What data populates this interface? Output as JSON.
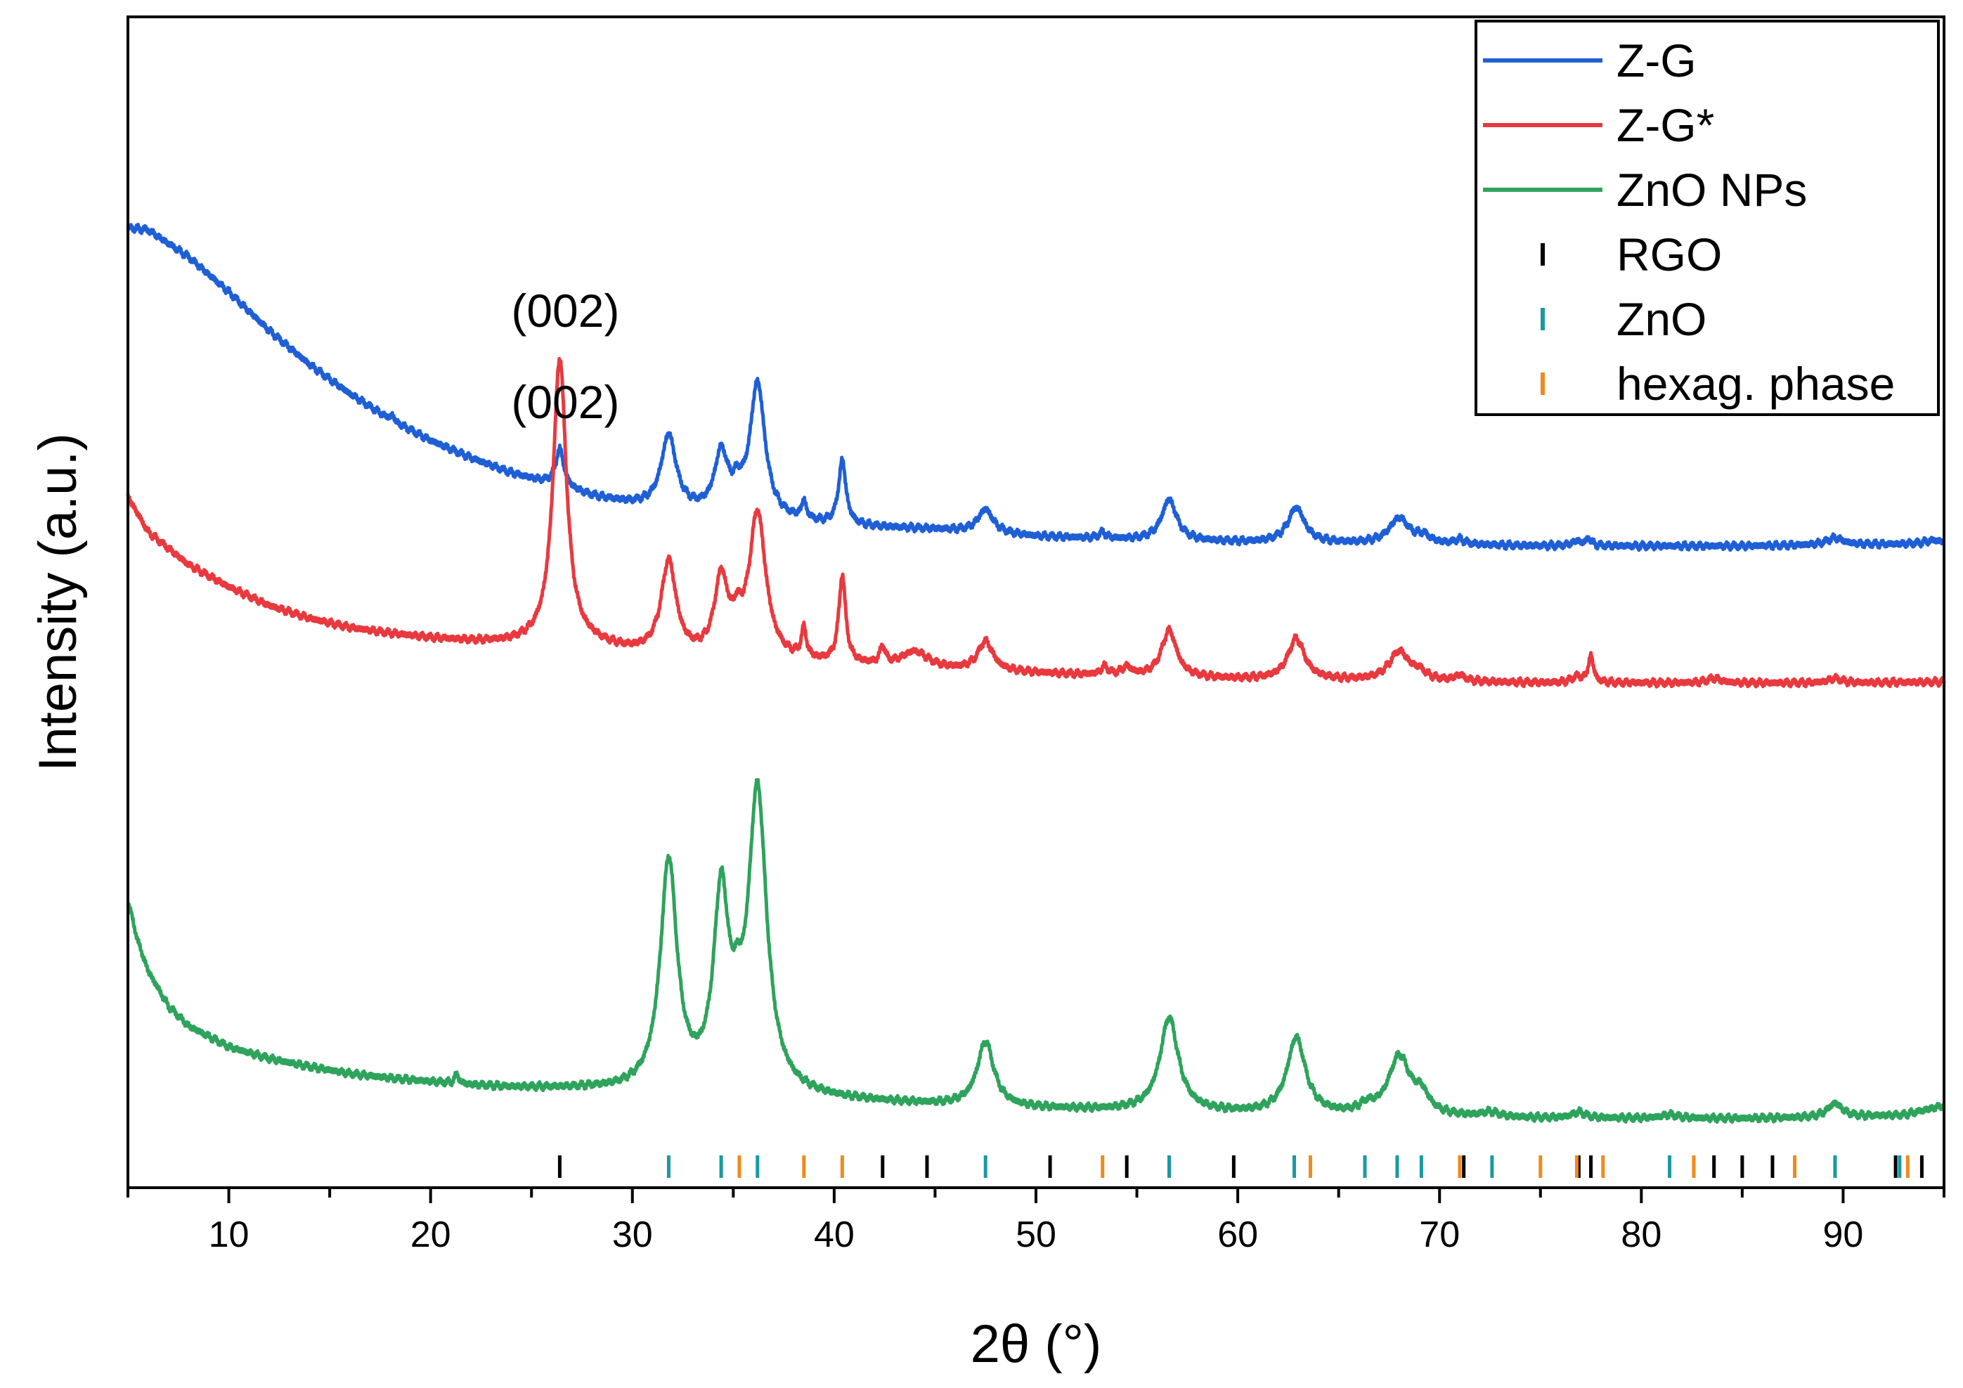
{
  "chart_data": {
    "type": "line",
    "title": "",
    "xlabel": "2θ (°)",
    "ylabel": "Intensity (a.u.)",
    "xlim": [
      5,
      95
    ],
    "ylim": [
      0,
      100
    ],
    "xticks": [
      "10",
      "20",
      "30",
      "40",
      "50",
      "60",
      "70",
      "80",
      "90"
    ],
    "yticks": [],
    "grid": false,
    "legend_position": "top-right",
    "series": [
      {
        "name": "Z-G",
        "color": "#1f5fd6",
        "kind": "line",
        "baseline": [
          [
            5,
            82.0
          ],
          [
            6,
            81.8
          ],
          [
            8,
            79.5
          ],
          [
            10,
            76.5
          ],
          [
            12,
            73.2
          ],
          [
            14,
            70.3
          ],
          [
            16,
            67.8
          ],
          [
            18,
            65.6
          ],
          [
            20,
            63.8
          ],
          [
            22,
            62.3
          ],
          [
            24,
            61.0
          ],
          [
            26,
            60.0
          ],
          [
            28,
            59.0
          ],
          [
            30,
            58.3
          ],
          [
            32,
            57.8
          ],
          [
            34,
            57.4
          ],
          [
            36,
            57.0
          ],
          [
            40,
            56.5
          ],
          [
            45,
            56.2
          ],
          [
            50,
            55.6
          ],
          [
            55,
            55.3
          ],
          [
            60,
            55.1
          ],
          [
            65,
            55.0
          ],
          [
            70,
            54.9
          ],
          [
            75,
            54.8
          ],
          [
            80,
            54.8
          ],
          [
            85,
            54.8
          ],
          [
            90,
            54.9
          ],
          [
            95,
            55.0
          ]
        ],
        "peaks": [
          [
            18.1,
            0.5,
            0.1
          ],
          [
            26.4,
            3.2,
            0.25
          ],
          [
            31.8,
            6.3,
            0.45
          ],
          [
            34.4,
            5.0,
            0.4
          ],
          [
            35.2,
            1.5,
            0.3
          ],
          [
            36.2,
            11.5,
            0.45
          ],
          [
            38.5,
            1.5,
            0.15
          ],
          [
            40.4,
            5.5,
            0.22
          ],
          [
            47.5,
            2.0,
            0.45
          ],
          [
            53.3,
            0.5,
            0.2
          ],
          [
            56.6,
            3.5,
            0.45
          ],
          [
            62.9,
            3.0,
            0.5
          ],
          [
            68.0,
            2.2,
            0.6
          ],
          [
            69.2,
            0.6,
            0.4
          ],
          [
            71.0,
            0.4,
            0.3
          ],
          [
            76.8,
            0.4,
            0.3
          ],
          [
            77.4,
            0.6,
            0.15
          ],
          [
            89.6,
            0.6,
            0.5
          ],
          [
            94.5,
            0.3,
            0.5
          ]
        ]
      },
      {
        "name": "Z-G*",
        "color": "#e8393f",
        "kind": "line",
        "baseline": [
          [
            5,
            59.0
          ],
          [
            6,
            56.0
          ],
          [
            8,
            53.2
          ],
          [
            10,
            51.3
          ],
          [
            12,
            49.7
          ],
          [
            14,
            48.6
          ],
          [
            16,
            47.8
          ],
          [
            18,
            47.3
          ],
          [
            20,
            46.9
          ],
          [
            22,
            46.6
          ],
          [
            24,
            46.4
          ],
          [
            26,
            46.3
          ],
          [
            28,
            46.2
          ],
          [
            30,
            45.6
          ],
          [
            32,
            45.2
          ],
          [
            34,
            45.0
          ],
          [
            36,
            44.8
          ],
          [
            40,
            44.6
          ],
          [
            45,
            44.2
          ],
          [
            50,
            43.9
          ],
          [
            55,
            43.6
          ],
          [
            60,
            43.4
          ],
          [
            65,
            43.3
          ],
          [
            70,
            43.2
          ],
          [
            75,
            43.1
          ],
          [
            80,
            43.1
          ],
          [
            85,
            43.1
          ],
          [
            90,
            43.1
          ],
          [
            95,
            43.2
          ]
        ],
        "peaks": [
          [
            26.4,
            24.5,
            0.4
          ],
          [
            31.8,
            8.0,
            0.45
          ],
          [
            34.4,
            6.5,
            0.4
          ],
          [
            35.2,
            2.0,
            0.3
          ],
          [
            36.2,
            12.5,
            0.5
          ],
          [
            38.5,
            2.5,
            0.15
          ],
          [
            40.4,
            7.5,
            0.2
          ],
          [
            42.4,
            1.5,
            0.15
          ],
          [
            44.0,
            1.4,
            0.8
          ],
          [
            47.5,
            2.5,
            0.45
          ],
          [
            53.4,
            0.7,
            0.2
          ],
          [
            54.5,
            0.7,
            0.3
          ],
          [
            56.6,
            4.0,
            0.45
          ],
          [
            62.9,
            3.5,
            0.5
          ],
          [
            68.0,
            2.5,
            0.6
          ],
          [
            69.0,
            0.6,
            0.4
          ],
          [
            71.0,
            0.5,
            0.3
          ],
          [
            76.8,
            0.5,
            0.3
          ],
          [
            77.5,
            2.3,
            0.15
          ],
          [
            83.6,
            0.4,
            0.4
          ],
          [
            89.6,
            0.4,
            0.4
          ]
        ]
      },
      {
        "name": "ZnO NPs",
        "color": "#2ea35c",
        "kind": "line",
        "baseline": [
          [
            5,
            24.5
          ],
          [
            5.5,
            21.0
          ],
          [
            6,
            18.5
          ],
          [
            7,
            15.5
          ],
          [
            8,
            13.8
          ],
          [
            10,
            12.0
          ],
          [
            12,
            11.0
          ],
          [
            14,
            10.3
          ],
          [
            16,
            9.7
          ],
          [
            18,
            9.3
          ],
          [
            20,
            9.0
          ],
          [
            22,
            8.7
          ],
          [
            24,
            8.5
          ],
          [
            26,
            8.4
          ],
          [
            28,
            8.3
          ],
          [
            30,
            8.1
          ],
          [
            35,
            7.8
          ],
          [
            40,
            7.4
          ],
          [
            45,
            7.0
          ],
          [
            50,
            6.7
          ],
          [
            55,
            6.5
          ],
          [
            60,
            6.3
          ],
          [
            65,
            6.1
          ],
          [
            70,
            6.0
          ],
          [
            75,
            5.9
          ],
          [
            80,
            5.9
          ],
          [
            85,
            5.9
          ],
          [
            90,
            6.0
          ],
          [
            93,
            6.2
          ],
          [
            95,
            7.0
          ]
        ],
        "peaks": [
          [
            21.3,
            0.8,
            0.12
          ],
          [
            31.8,
            19.5,
            0.5
          ],
          [
            34.4,
            16.0,
            0.45
          ],
          [
            35.2,
            3.0,
            0.3
          ],
          [
            36.2,
            25.5,
            0.55
          ],
          [
            47.5,
            5.5,
            0.5
          ],
          [
            56.6,
            8.0,
            0.55
          ],
          [
            62.9,
            6.5,
            0.55
          ],
          [
            66.4,
            0.6,
            0.4
          ],
          [
            68.0,
            5.0,
            0.65
          ],
          [
            69.1,
            1.5,
            0.45
          ],
          [
            72.5,
            0.4,
            0.5
          ],
          [
            76.9,
            0.5,
            0.4
          ],
          [
            81.4,
            0.3,
            0.5
          ],
          [
            89.6,
            1.2,
            0.45
          ]
        ]
      }
    ],
    "reference_markers": [
      {
        "name": "RGO",
        "color": "#000000",
        "positions": [
          26.4,
          42.4,
          44.6,
          50.7,
          54.5,
          59.8,
          71.2,
          76.9,
          77.5,
          83.6,
          85.0,
          86.5,
          92.6,
          93.9
        ]
      },
      {
        "name": "ZnO",
        "color": "#1a9aa0",
        "positions": [
          31.8,
          34.4,
          36.2,
          47.5,
          56.6,
          62.8,
          66.3,
          67.9,
          69.1,
          72.6,
          81.4,
          89.6,
          92.8
        ]
      },
      {
        "name": "hexag. phase",
        "color": "#f08a1c",
        "positions": [
          35.3,
          38.5,
          40.4,
          53.3,
          63.6,
          71.0,
          75.0,
          76.8,
          78.1,
          82.6,
          87.6,
          93.2
        ]
      }
    ],
    "annotations": [
      {
        "text": "(002)",
        "x": 26.4,
        "series": "Z-G"
      },
      {
        "text": "(002)",
        "x": 26.4,
        "series": "Z-G*"
      }
    ]
  }
}
